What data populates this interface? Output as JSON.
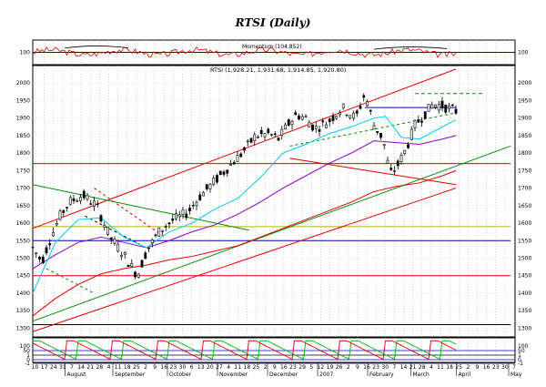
{
  "chart_data": {
    "type": "candlestick",
    "title": "RTSI (Daily)",
    "colors": {
      "price": "#000000",
      "ema_fast": "#00c8f0",
      "ema_mid": "#9000c8",
      "ema_slow": "#e00000",
      "trend_red": "#e00000",
      "trend_green": "#008c00",
      "hline_red": "#e00000",
      "hline_blue": "#0000b4",
      "hline_olive": "#b4b400",
      "momentum": "#e00000",
      "stoch_green": "#00b400",
      "stoch_red": "#e00000"
    },
    "price_panel": {
      "label_text": "RTSI (1,928.21, 1,931.68, 1,914.85, 1,920.80)",
      "open": 1928.21,
      "high": 1931.68,
      "low": 1914.85,
      "close": 1920.8,
      "ylim": [
        1275,
        2050
      ],
      "ticks": [
        2000,
        1950,
        1900,
        1850,
        1800,
        1750,
        1700,
        1650,
        1600,
        1550,
        1500,
        1450,
        1400,
        1350,
        1300
      ],
      "horizontal_lines": [
        {
          "value": 1930,
          "color": "#0000b4",
          "x_start": 146,
          "x_end": 186
        },
        {
          "value": 1970,
          "color": "#008c00",
          "x_start": 168,
          "x_end": 198,
          "dashed": true
        },
        {
          "value": 1770,
          "color": "#e00000",
          "x_start": 0,
          "x_end": 210
        },
        {
          "value": 1590,
          "color": "#b4b400",
          "x_start": 0,
          "x_end": 210
        },
        {
          "value": 1550,
          "color": "#0000b4",
          "x_start": 0,
          "x_end": 210
        },
        {
          "value": 1450,
          "color": "#e00000",
          "x_start": 0,
          "x_end": 210
        },
        {
          "value": 1310,
          "color": "#000000",
          "x_start": 0,
          "x_end": 210
        }
      ],
      "trendlines": [
        {
          "color": "#e00000",
          "x1": 0,
          "y1": 1585,
          "x2": 186,
          "y2": 2040
        },
        {
          "color": "#e00000",
          "x1": 0,
          "y1": 1290,
          "x2": 186,
          "y2": 1700
        },
        {
          "color": "#e00000",
          "x1": 113,
          "y1": 1785,
          "x2": 186,
          "y2": 1710
        },
        {
          "color": "#008c00",
          "x1": 0,
          "y1": 1320,
          "x2": 210,
          "y2": 1820
        },
        {
          "color": "#008c00",
          "x1": 0,
          "y1": 1710,
          "x2": 95,
          "y2": 1580
        },
        {
          "color": "#008c00",
          "x1": 113,
          "y1": 1820,
          "x2": 186,
          "y2": 1915,
          "dashed": true
        },
        {
          "color": "#008c00",
          "x1": 6,
          "y1": 1470,
          "x2": 27,
          "y2": 1400,
          "dashed": true
        },
        {
          "color": "#000000",
          "x1": 23,
          "y1": 1620,
          "x2": 47,
          "y2": 1540,
          "dashed": true
        },
        {
          "color": "#e00000",
          "x1": 27,
          "y1": 1700,
          "x2": 58,
          "y2": 1560,
          "dashed": true
        }
      ],
      "ema_fast": [
        [
          0,
          1400
        ],
        [
          10,
          1545
        ],
        [
          20,
          1610
        ],
        [
          30,
          1615
        ],
        [
          40,
          1560
        ],
        [
          50,
          1530
        ],
        [
          60,
          1575
        ],
        [
          70,
          1600
        ],
        [
          80,
          1640
        ],
        [
          90,
          1670
        ],
        [
          100,
          1730
        ],
        [
          110,
          1800
        ],
        [
          120,
          1825
        ],
        [
          130,
          1855
        ],
        [
          140,
          1875
        ],
        [
          150,
          1900
        ],
        [
          155,
          1905
        ],
        [
          162,
          1845
        ],
        [
          170,
          1840
        ],
        [
          180,
          1875
        ],
        [
          186,
          1895
        ]
      ],
      "ema_mid": [
        [
          0,
          1470
        ],
        [
          10,
          1510
        ],
        [
          20,
          1545
        ],
        [
          30,
          1560
        ],
        [
          40,
          1545
        ],
        [
          50,
          1530
        ],
        [
          60,
          1550
        ],
        [
          70,
          1575
        ],
        [
          80,
          1595
        ],
        [
          90,
          1625
        ],
        [
          100,
          1660
        ],
        [
          110,
          1700
        ],
        [
          120,
          1735
        ],
        [
          130,
          1770
        ],
        [
          140,
          1800
        ],
        [
          150,
          1835
        ],
        [
          160,
          1830
        ],
        [
          170,
          1825
        ],
        [
          180,
          1840
        ],
        [
          186,
          1850
        ]
      ],
      "ema_slow": [
        [
          0,
          1335
        ],
        [
          10,
          1385
        ],
        [
          20,
          1425
        ],
        [
          30,
          1455
        ],
        [
          40,
          1470
        ],
        [
          50,
          1480
        ],
        [
          60,
          1495
        ],
        [
          70,
          1505
        ],
        [
          80,
          1520
        ],
        [
          90,
          1535
        ],
        [
          100,
          1560
        ],
        [
          110,
          1585
        ],
        [
          120,
          1610
        ],
        [
          130,
          1635
        ],
        [
          140,
          1660
        ],
        [
          150,
          1690
        ],
        [
          160,
          1705
        ],
        [
          170,
          1715
        ],
        [
          180,
          1735
        ],
        [
          186,
          1750
        ]
      ]
    },
    "momentum_panel": {
      "label_text": "Momentum (104.852)",
      "value": 104.852,
      "ylim": [
        80,
        120
      ],
      "ticks": [
        100
      ],
      "baseline": 100
    },
    "stochastic_panel": {
      "ylim": [
        -10,
        115
      ],
      "ticks": [
        100,
        50,
        1,
        0,
        -1
      ],
      "reference_lines": [
        {
          "value": 50,
          "color": "#0000b4"
        },
        {
          "value": 1,
          "color": "#000000"
        },
        {
          "value": 0,
          "color": "#0000b4"
        },
        {
          "value": -1,
          "color": "#000000"
        }
      ]
    },
    "x_axis": {
      "days": [
        "10",
        "17",
        "24",
        "31",
        "7",
        "14",
        "21",
        "28",
        "4",
        "11",
        "18",
        "25",
        "2",
        "9",
        "16",
        "23",
        "30",
        "6",
        "13",
        "20",
        "27",
        "4",
        "11",
        "18",
        "25",
        "2",
        "9",
        "16",
        "23",
        "29",
        "5",
        "12",
        "19",
        "26",
        "2",
        "9",
        "16",
        "23",
        "30",
        "7",
        "14",
        "21",
        "28",
        "4",
        "11",
        "18",
        "25",
        "2",
        "9",
        "16",
        "23",
        "30",
        "7"
      ],
      "months": [
        {
          "label": "August",
          "x": 15
        },
        {
          "label": "September",
          "x": 36
        },
        {
          "label": "October",
          "x": 60
        },
        {
          "label": "November",
          "x": 82
        },
        {
          "label": "December",
          "x": 104
        },
        {
          "label": "2007",
          "x": 126
        },
        {
          "label": "February",
          "x": 148
        },
        {
          "label": "March",
          "x": 167
        },
        {
          "label": "April",
          "x": 187
        },
        {
          "label": "May",
          "x": 210
        }
      ]
    },
    "grid": true
  }
}
